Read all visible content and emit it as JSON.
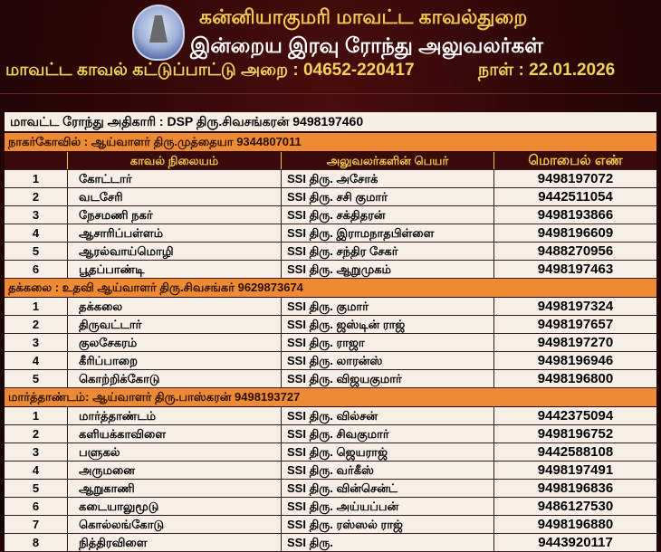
{
  "header": {
    "title": "கன்னியாகுமரி மாவட்ட காவல்துறை",
    "subtitle": "இன்றைய இரவு ரோந்து அலுவலர்கள்",
    "control_room": "மாவட்ட காவல் கட்டுப்பாட்டு அறை : 04652-220417",
    "date": "நாள் : 22.01.2026"
  },
  "supervisor": "மாவட்ட ரோந்து அதிகாரி : DSP திரு.சிவசங்கரன் 9498197460",
  "columns": [
    "",
    "காவல் நிலையம்",
    "அலுவலர்களின் பெயர்",
    "மொபைல் எண்"
  ],
  "sections": [
    {
      "title": "நாகர்கோவில் : ஆய்வாளர் திரு.முத்தையா 9344807011",
      "rows": [
        [
          "1",
          "கோட்டார்",
          "SSI திரு. அசோக்",
          "9498197072"
        ],
        [
          "2",
          "வடசேரி",
          "SSI திரு. சசி குமார்",
          "9442511054"
        ],
        [
          "3",
          "நேசமணி நகர்",
          "SSI திரு. சக்திதரன்",
          "9498193866"
        ],
        [
          "4",
          "ஆசாரிப்பள்ளம்",
          "SSI திரு. இராமநாதபிள்ளை",
          "9498196609"
        ],
        [
          "5",
          "ஆரல்வாய்மொழி",
          "SSI திரு. சந்திர சேகர்",
          "9488270956"
        ],
        [
          "6",
          "பூதப்பாண்டி",
          "SSI திரு. ஆறுமுகம்",
          "9498197463"
        ]
      ]
    },
    {
      "title": "தக்கலை : உதவி ஆய்வாளர் திரு.சிவசங்கர் 9629873674",
      "rows": [
        [
          "1",
          "தக்கலை",
          "SSI திரு. குமார்",
          "9498197324"
        ],
        [
          "2",
          "திருவட்டார்",
          "SSI திரு. ஜஸ்டின் ராஜ்",
          "9498197657"
        ],
        [
          "3",
          "குலசேகரம்",
          "SSI திரு. ராஜா",
          "9498197270"
        ],
        [
          "4",
          "கீரிப்பாறை",
          "SSI திரு. லாரன்ஸ்",
          "9498196946"
        ],
        [
          "5",
          "கொற்றிக்கோடு",
          "SSI திரு. விஜயகுமார்",
          "9498196800"
        ]
      ]
    },
    {
      "title": "மார்த்தாண்டம்: ஆய்வாளர் திரு.பாஸ்கரன் 9498193727",
      "rows": [
        [
          "1",
          "மார்த்தாண்டம்",
          "SSI திரு. வில்சன்",
          "9442375094"
        ],
        [
          "2",
          "களியக்காவிளை",
          "SSI திரு. சிவகுமார்",
          "9498196752"
        ],
        [
          "3",
          "பளுகல்",
          "SSI திரு. ஜெயராஜ்",
          "9442588108"
        ],
        [
          "4",
          "அருமனை",
          "SSI திரு. வர்கீஸ்",
          "9498197491"
        ],
        [
          "5",
          "ஆறுகாணி",
          "SSI திரு. வின்சென்ட்",
          "9498196836"
        ],
        [
          "6",
          "கடையாலுமூடு",
          "SSI திரு. அய்யப்பன்",
          "9486127530"
        ],
        [
          "7",
          "கொல்லங்கோடு",
          "SSI திரு. ரஸ்ஸல் ராஜ்",
          "9498196880"
        ],
        [
          "8",
          "நித்திரவிளை",
          "SSI திரு.",
          "9443920117"
        ]
      ]
    }
  ]
}
